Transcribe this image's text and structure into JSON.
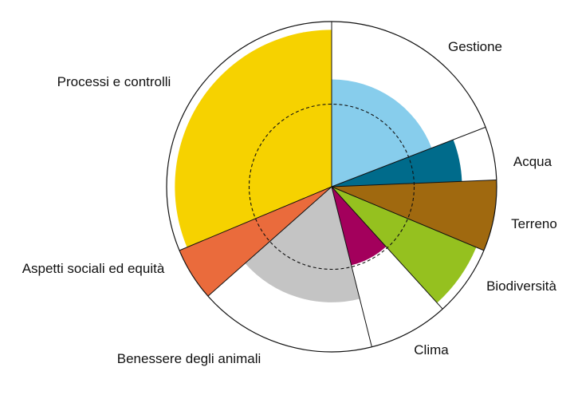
{
  "chart_data": {
    "type": "polar-area",
    "title": "",
    "categories": [
      "Gestione",
      "Acqua",
      "Terreno",
      "Biodiversità",
      "Clima",
      "Benessere degli animali",
      "Aspetti sociali ed equità",
      "Processi e controlli"
    ],
    "weights": [
      22,
      6,
      8,
      8,
      9,
      20,
      6,
      36
    ],
    "values": [
      0.65,
      0.79,
      1.0,
      0.95,
      0.49,
      0.7,
      1.0,
      0.95
    ],
    "colors": [
      "#87cdec",
      "#006b8b",
      "#a0690f",
      "#95c11f",
      "#a3005c",
      "#c4c4c4",
      "#ea6b3c",
      "#f6d200"
    ],
    "reference_ring": 0.5,
    "reference_style": "dashed",
    "outline": true,
    "start_angle": "top",
    "direction": "clockwise",
    "legend": "labels around the chart"
  }
}
